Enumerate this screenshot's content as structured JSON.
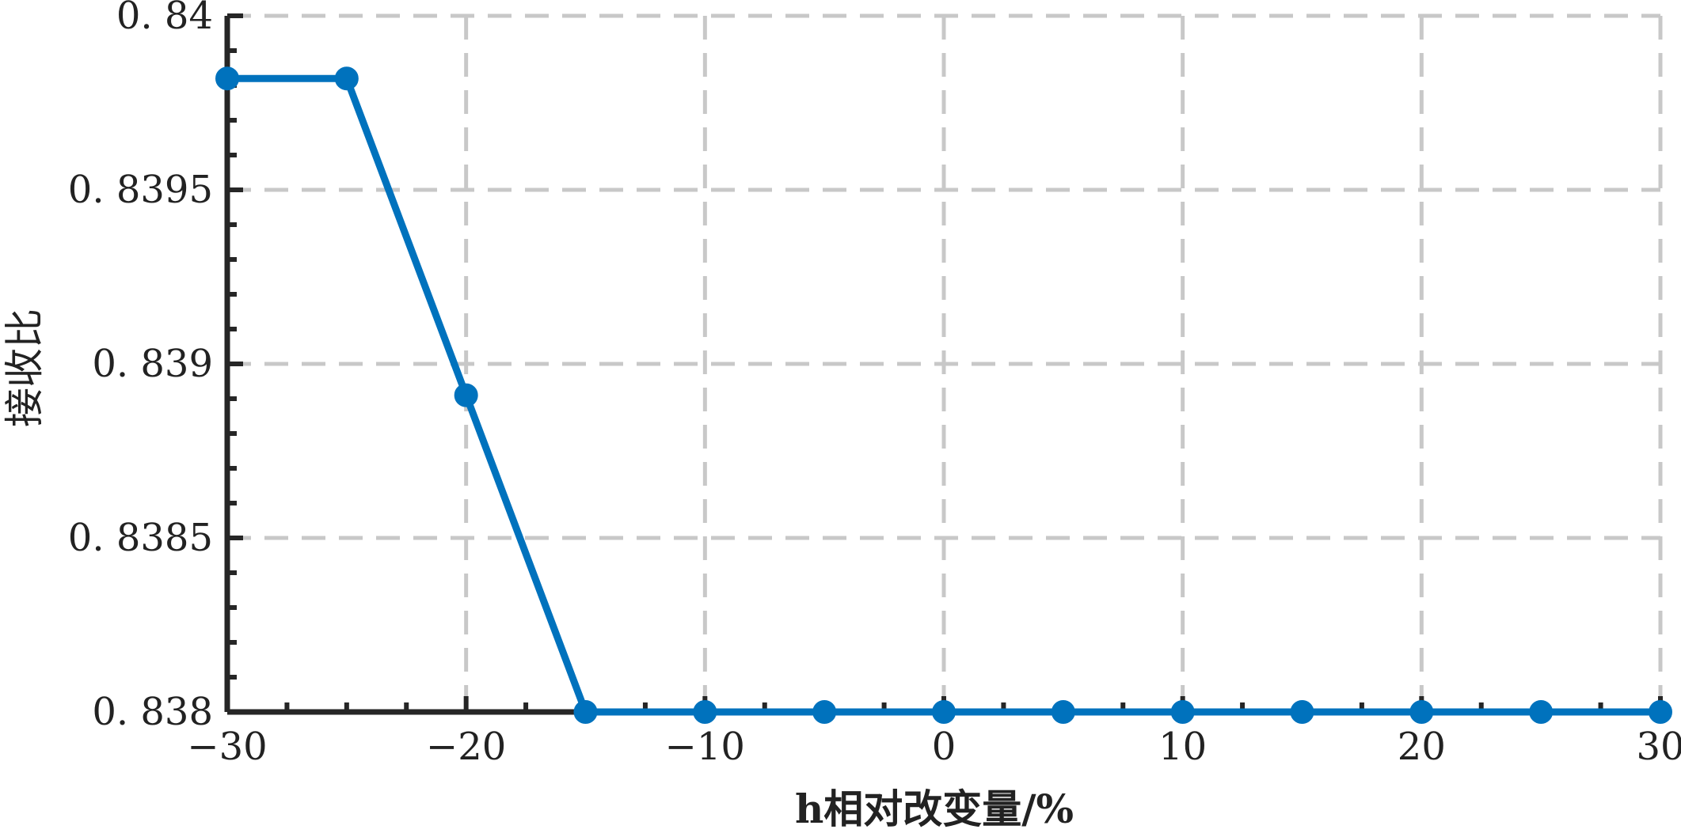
{
  "chart_data": {
    "type": "line",
    "title": "",
    "xlabel": "h相对改变量/%",
    "ylabel": "接收比",
    "xlim": [
      -30,
      30
    ],
    "ylim": [
      0.838,
      0.84
    ],
    "x_ticks": [
      -30,
      -20,
      -10,
      0,
      10,
      20,
      30
    ],
    "x_tick_labels": [
      "−30",
      "−20",
      "−10",
      "0",
      "10",
      "20",
      "30"
    ],
    "y_ticks": [
      0.838,
      0.8385,
      0.839,
      0.8395,
      0.84
    ],
    "y_tick_labels": [
      "0. 838",
      "0. 8385",
      "0. 839",
      "0. 8395",
      "0. 84"
    ],
    "grid": true,
    "series": [
      {
        "color": "#0072BD",
        "x": [
          -30,
          -25,
          -20,
          -15,
          -10,
          -5,
          0,
          5,
          10,
          15,
          20,
          25,
          30
        ],
        "y": [
          0.83982,
          0.83982,
          0.83891,
          0.838,
          0.838,
          0.838,
          0.838,
          0.838,
          0.838,
          0.838,
          0.838,
          0.838,
          0.838
        ]
      }
    ]
  }
}
